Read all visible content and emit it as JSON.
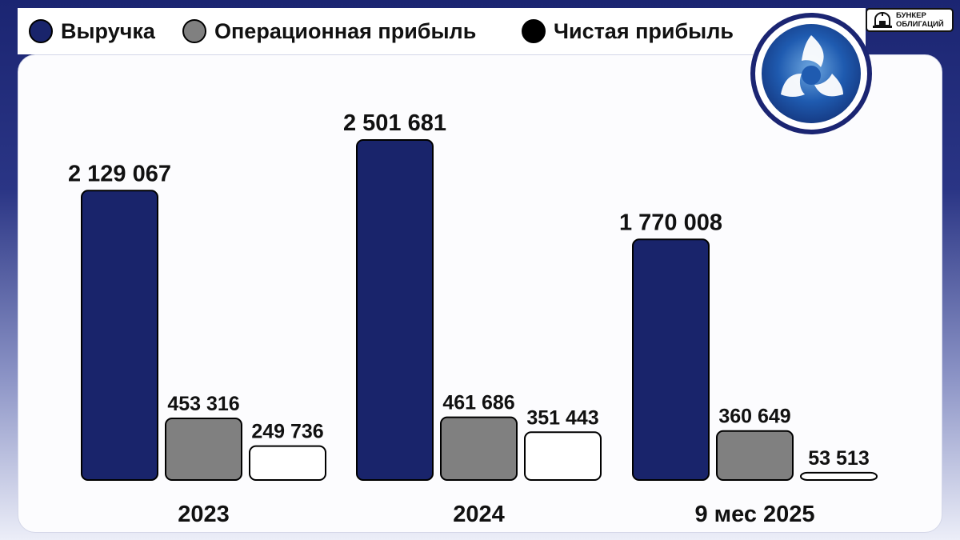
{
  "legend": [
    {
      "label": "Выручка",
      "color": "#19246b"
    },
    {
      "label": "Операционная прибыль",
      "color": "#808080"
    },
    {
      "label": "Чистая прибыль",
      "color": "#000000"
    }
  ],
  "brand": {
    "line1": "БУНКЕР",
    "line2": "ОБЛИГАЦИЙ"
  },
  "logo": {
    "icon": "rosatom-logo-icon"
  },
  "chart_data": {
    "type": "bar",
    "categories": [
      "2023",
      "2024",
      "9 мес 2025"
    ],
    "series": [
      {
        "name": "Выручка",
        "color": "#19246b",
        "values": [
          2129067,
          2501681,
          1770008
        ],
        "labels": [
          "2 129 067",
          "2 501 681",
          "1 770 008"
        ]
      },
      {
        "name": "Операционная прибыль",
        "color": "#808080",
        "values": [
          453316,
          461686,
          360649
        ],
        "labels": [
          "453 316",
          "461 686",
          "360 649"
        ]
      },
      {
        "name": "Чистая прибыль",
        "color": "#ffffff",
        "values": [
          249736,
          351443,
          53513
        ],
        "labels": [
          "249 736",
          "351 443",
          "53 513"
        ]
      }
    ],
    "ylim": [
      0,
      2501681
    ],
    "grid": false,
    "legend_position": "top"
  }
}
